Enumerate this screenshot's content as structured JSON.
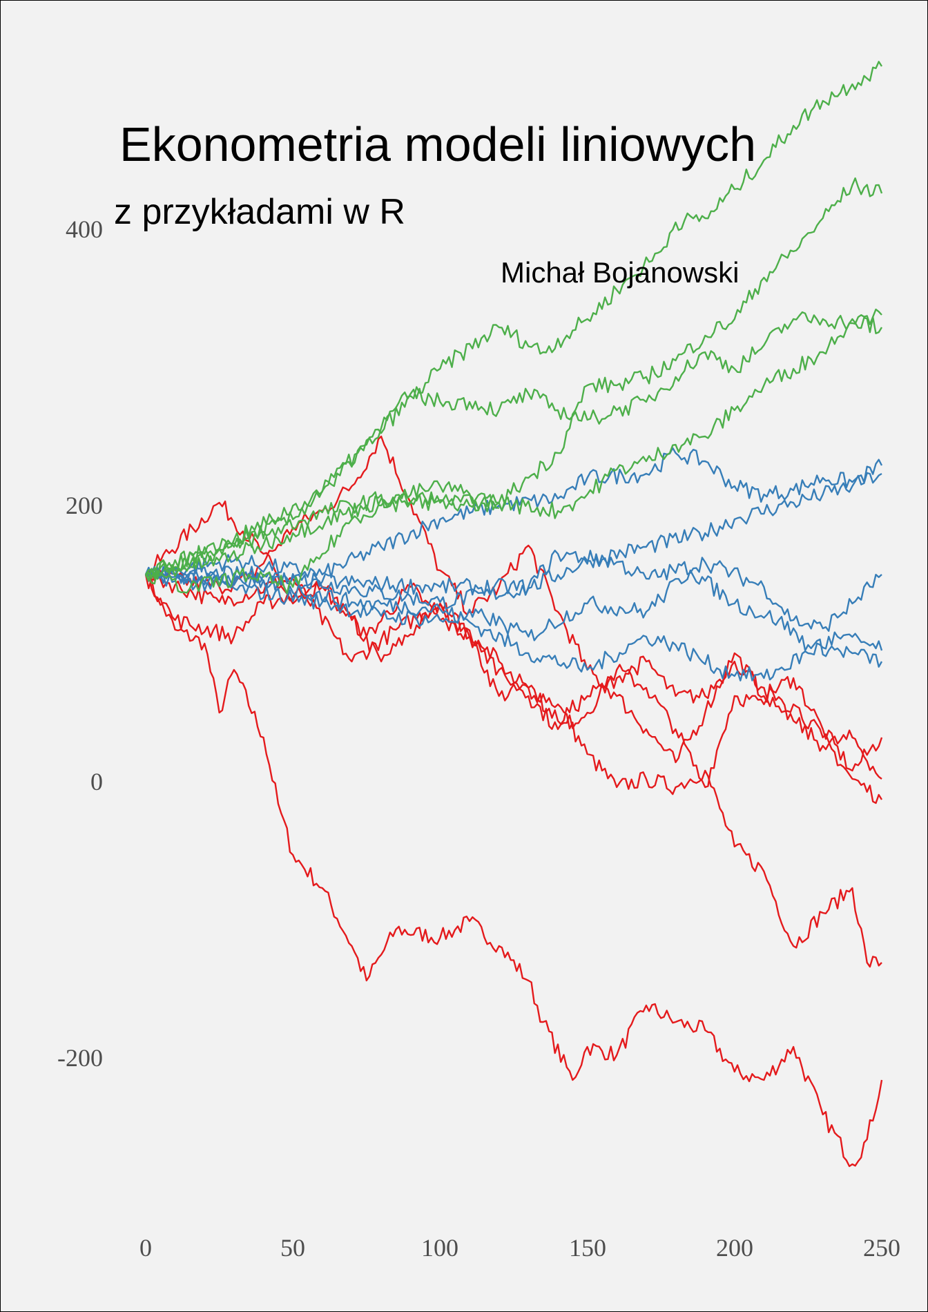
{
  "cover": {
    "title": "Ekonometria modeli liniowych",
    "subtitle": "z przykładami w R",
    "author": "Michał Bojanowski",
    "background": "#f2f2f2"
  },
  "chart_data": {
    "type": "line",
    "title": "",
    "xlabel": "",
    "ylabel": "",
    "xlim": [
      0,
      250
    ],
    "ylim": [
      -280,
      520
    ],
    "grid": false,
    "x_ticks": [
      "0",
      "50",
      "100",
      "150",
      "200",
      "250"
    ],
    "y_ticks": [
      "-200",
      "0",
      "200",
      "400"
    ],
    "colors": {
      "red": "#e41a1c",
      "blue": "#377eb8",
      "green": "#4daf4a"
    },
    "series": [
      {
        "color": "green",
        "points": [
          [
            0,
            150
          ],
          [
            20,
            165
          ],
          [
            50,
            190
          ],
          [
            75,
            244
          ],
          [
            100,
            299
          ],
          [
            120,
            329
          ],
          [
            135,
            311
          ],
          [
            150,
            335
          ],
          [
            160,
            356
          ],
          [
            175,
            384
          ],
          [
            180,
            405
          ],
          [
            190,
            408
          ],
          [
            200,
            429
          ],
          [
            210,
            450
          ],
          [
            220,
            475
          ],
          [
            230,
            493
          ],
          [
            240,
            505
          ],
          [
            250,
            518
          ]
        ]
      },
      {
        "color": "green",
        "points": [
          [
            0,
            150
          ],
          [
            30,
            170
          ],
          [
            60,
            195
          ],
          [
            80,
            205
          ],
          [
            100,
            202
          ],
          [
            120,
            202
          ],
          [
            130,
            220
          ],
          [
            140,
            238
          ],
          [
            150,
            287
          ],
          [
            160,
            287
          ],
          [
            170,
            293
          ],
          [
            180,
            305
          ],
          [
            190,
            323
          ],
          [
            200,
            335
          ],
          [
            210,
            365
          ],
          [
            220,
            384
          ],
          [
            230,
            408
          ],
          [
            240,
            432
          ],
          [
            250,
            426
          ]
        ]
      },
      {
        "color": "green",
        "points": [
          [
            0,
            150
          ],
          [
            30,
            175
          ],
          [
            60,
            210
          ],
          [
            90,
            281
          ],
          [
            100,
            275
          ],
          [
            110,
            275
          ],
          [
            120,
            269
          ],
          [
            130,
            281
          ],
          [
            140,
            269
          ],
          [
            150,
            262
          ],
          [
            160,
            269
          ],
          [
            170,
            275
          ],
          [
            180,
            293
          ],
          [
            190,
            311
          ],
          [
            200,
            299
          ],
          [
            210,
            316
          ],
          [
            220,
            335
          ],
          [
            230,
            335
          ],
          [
            240,
            332
          ],
          [
            250,
            338
          ]
        ]
      },
      {
        "color": "green",
        "points": [
          [
            0,
            150
          ],
          [
            25,
            160
          ],
          [
            50,
            180
          ],
          [
            75,
            200
          ],
          [
            100,
            214
          ],
          [
            120,
            202
          ],
          [
            140,
            196
          ],
          [
            150,
            208
          ],
          [
            160,
            226
          ],
          [
            170,
            232
          ],
          [
            180,
            244
          ],
          [
            190,
            250
          ],
          [
            200,
            269
          ],
          [
            210,
            287
          ],
          [
            220,
            299
          ],
          [
            230,
            311
          ],
          [
            240,
            335
          ],
          [
            250,
            329
          ]
        ]
      },
      {
        "color": "green",
        "points": [
          [
            0,
            150
          ],
          [
            15,
            140
          ],
          [
            35,
            150
          ],
          [
            50,
            141
          ],
          [
            60,
            165
          ],
          [
            70,
            190
          ],
          [
            80,
            200
          ],
          [
            95,
            205
          ],
          [
            110,
            200
          ],
          [
            120,
            198
          ]
        ]
      },
      {
        "color": "blue",
        "points": [
          [
            0,
            150
          ],
          [
            30,
            160
          ],
          [
            60,
            150
          ],
          [
            80,
            170
          ],
          [
            100,
            190
          ],
          [
            120,
            200
          ],
          [
            140,
            205
          ],
          [
            150,
            220
          ],
          [
            170,
            223
          ],
          [
            180,
            238
          ],
          [
            190,
            232
          ],
          [
            200,
            214
          ],
          [
            210,
            208
          ],
          [
            220,
            211
          ],
          [
            230,
            220
          ],
          [
            240,
            217
          ],
          [
            250,
            229
          ]
        ]
      },
      {
        "color": "blue",
        "points": [
          [
            0,
            150
          ],
          [
            40,
            150
          ],
          [
            70,
            140
          ],
          [
            100,
            130
          ],
          [
            130,
            140
          ],
          [
            150,
            160
          ],
          [
            170,
            170
          ],
          [
            190,
            180
          ],
          [
            200,
            190
          ],
          [
            220,
            202
          ],
          [
            240,
            214
          ],
          [
            250,
            223
          ]
        ]
      },
      {
        "color": "blue",
        "points": [
          [
            0,
            150
          ],
          [
            30,
            145
          ],
          [
            60,
            145
          ],
          [
            100,
            141
          ],
          [
            130,
            141
          ],
          [
            140,
            165
          ],
          [
            160,
            159
          ],
          [
            170,
            147
          ],
          [
            190,
            159
          ],
          [
            210,
            141
          ],
          [
            220,
            117
          ],
          [
            230,
            111
          ],
          [
            240,
            129
          ],
          [
            250,
            150
          ]
        ]
      },
      {
        "color": "blue",
        "points": [
          [
            0,
            150
          ],
          [
            30,
            140
          ],
          [
            60,
            130
          ],
          [
            80,
            120
          ],
          [
            100,
            117
          ],
          [
            115,
            120
          ],
          [
            130,
            105
          ],
          [
            150,
            129
          ],
          [
            170,
            123
          ],
          [
            185,
            153
          ],
          [
            200,
            129
          ],
          [
            215,
            117
          ],
          [
            225,
            99
          ],
          [
            240,
            93
          ],
          [
            250,
            87
          ]
        ]
      },
      {
        "color": "blue",
        "points": [
          [
            0,
            150
          ],
          [
            40,
            145
          ],
          [
            70,
            130
          ],
          [
            100,
            125
          ],
          [
            115,
            110
          ],
          [
            130,
            93
          ],
          [
            150,
            81
          ],
          [
            170,
            105
          ],
          [
            180,
            99
          ],
          [
            195,
            81
          ],
          [
            210,
            75
          ],
          [
            225,
            93
          ],
          [
            235,
            105
          ],
          [
            245,
            100
          ],
          [
            250,
            95
          ]
        ]
      },
      {
        "color": "red",
        "points": [
          [
            0,
            150
          ],
          [
            10,
            110
          ],
          [
            20,
            100
          ],
          [
            25,
            50
          ],
          [
            30,
            81
          ],
          [
            40,
            32
          ],
          [
            45,
            -16
          ],
          [
            50,
            -53
          ],
          [
            60,
            -77
          ],
          [
            70,
            -119
          ],
          [
            75,
            -144
          ],
          [
            85,
            -107
          ],
          [
            100,
            -113
          ],
          [
            110,
            -101
          ],
          [
            120,
            -119
          ],
          [
            130,
            -144
          ],
          [
            135,
            -174
          ],
          [
            145,
            -216
          ],
          [
            150,
            -192
          ],
          [
            160,
            -198
          ],
          [
            170,
            -162
          ],
          [
            180,
            -174
          ],
          [
            190,
            -180
          ],
          [
            200,
            -210
          ],
          [
            210,
            -216
          ],
          [
            220,
            -192
          ],
          [
            230,
            -241
          ],
          [
            240,
            -277
          ],
          [
            245,
            -259
          ],
          [
            250,
            -216
          ]
        ]
      },
      {
        "color": "red",
        "points": [
          [
            0,
            150
          ],
          [
            25,
            202
          ],
          [
            40,
            165
          ],
          [
            50,
            129
          ],
          [
            60,
            141
          ],
          [
            70,
            117
          ],
          [
            80,
            87
          ],
          [
            100,
            129
          ],
          [
            110,
            105
          ],
          [
            120,
            62
          ],
          [
            130,
            68
          ],
          [
            140,
            56
          ],
          [
            150,
            20
          ],
          [
            160,
            -4
          ],
          [
            170,
            2
          ],
          [
            180,
            -4
          ],
          [
            190,
            8
          ],
          [
            200,
            -47
          ],
          [
            210,
            -65
          ],
          [
            220,
            -119
          ],
          [
            230,
            -95
          ],
          [
            240,
            -77
          ],
          [
            245,
            -131
          ],
          [
            250,
            -131
          ]
        ]
      },
      {
        "color": "red",
        "points": [
          [
            0,
            150
          ],
          [
            25,
            141
          ],
          [
            35,
            147
          ],
          [
            50,
            184
          ],
          [
            60,
            196
          ],
          [
            70,
            214
          ],
          [
            80,
            250
          ],
          [
            90,
            202
          ],
          [
            100,
            153
          ],
          [
            110,
            123
          ],
          [
            120,
            141
          ],
          [
            130,
            171
          ],
          [
            140,
            123
          ],
          [
            150,
            81
          ],
          [
            160,
            62
          ],
          [
            170,
            38
          ],
          [
            180,
            14
          ],
          [
            190,
            50
          ],
          [
            200,
            93
          ],
          [
            210,
            62
          ],
          [
            220,
            75
          ],
          [
            230,
            38
          ],
          [
            240,
            8
          ],
          [
            250,
            32
          ]
        ]
      },
      {
        "color": "red",
        "points": [
          [
            0,
            150
          ],
          [
            25,
            130
          ],
          [
            50,
            147
          ],
          [
            70,
            87
          ],
          [
            85,
            110
          ],
          [
            100,
            129
          ],
          [
            120,
            87
          ],
          [
            130,
            62
          ],
          [
            140,
            38
          ],
          [
            150,
            50
          ],
          [
            160,
            81
          ],
          [
            170,
            68
          ],
          [
            180,
            38
          ],
          [
            190,
            -4
          ],
          [
            200,
            62
          ],
          [
            210,
            56
          ],
          [
            220,
            56
          ],
          [
            230,
            32
          ],
          [
            240,
            2
          ],
          [
            250,
            -13
          ]
        ]
      },
      {
        "color": "red",
        "points": [
          [
            0,
            150
          ],
          [
            10,
            117
          ],
          [
            30,
            105
          ],
          [
            40,
            129
          ],
          [
            60,
            141
          ],
          [
            75,
            105
          ],
          [
            90,
            141
          ],
          [
            100,
            117
          ],
          [
            110,
            105
          ],
          [
            120,
            81
          ],
          [
            130,
            68
          ],
          [
            140,
            44
          ],
          [
            150,
            62
          ],
          [
            160,
            75
          ],
          [
            170,
            87
          ],
          [
            180,
            62
          ],
          [
            190,
            62
          ],
          [
            200,
            87
          ],
          [
            210,
            68
          ],
          [
            220,
            44
          ],
          [
            230,
            26
          ],
          [
            240,
            32
          ],
          [
            250,
            2
          ]
        ]
      }
    ]
  }
}
